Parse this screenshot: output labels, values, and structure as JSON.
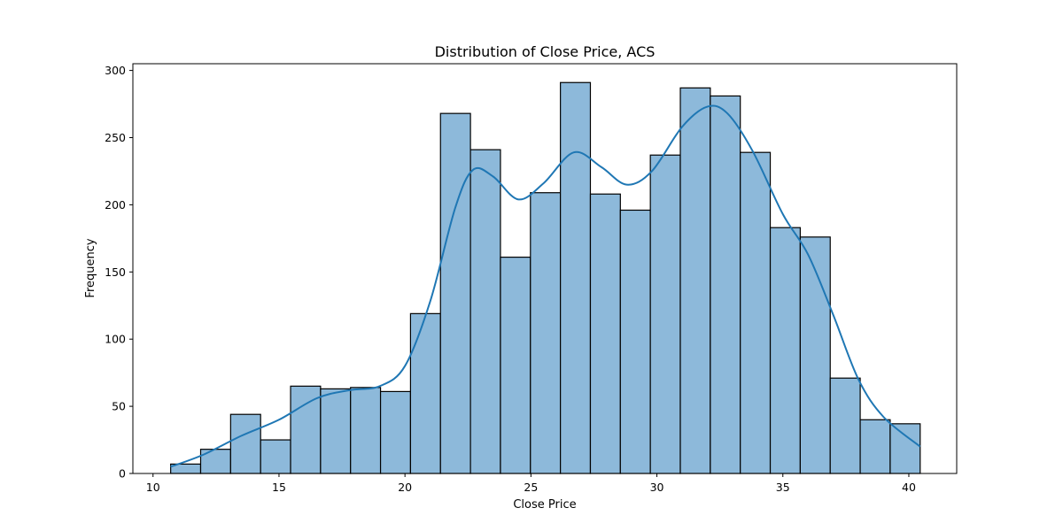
{
  "chart_data": {
    "type": "bar",
    "title": "Distribution of Close Price, ACS",
    "xlabel": "Close Price",
    "ylabel": "Frequency",
    "xlim": [
      9.2,
      41.9
    ],
    "ylim": [
      0,
      305
    ],
    "xticks": [
      10,
      15,
      20,
      25,
      30,
      35,
      40
    ],
    "yticks": [
      0,
      50,
      100,
      150,
      200,
      250,
      300
    ],
    "bin_edges": [
      10.7,
      11.89,
      13.08,
      14.27,
      15.46,
      16.65,
      17.84,
      19.03,
      20.22,
      21.41,
      22.6,
      23.79,
      24.98,
      26.17,
      27.36,
      28.55,
      29.74,
      30.93,
      32.12,
      33.31,
      34.5,
      35.69,
      36.88,
      38.07,
      39.26,
      40.45
    ],
    "values": [
      7,
      18,
      44,
      25,
      65,
      63,
      64,
      61,
      119,
      268,
      241,
      161,
      209,
      291,
      208,
      196,
      237,
      287,
      281,
      239,
      183,
      176,
      71,
      40,
      37
    ],
    "kde": {
      "x": [
        10.7,
        12.0,
        13.5,
        15.0,
        16.5,
        17.8,
        19.0,
        20.0,
        21.0,
        22.0,
        22.7,
        23.5,
        24.5,
        25.5,
        26.7,
        27.8,
        28.8,
        29.8,
        31.0,
        32.0,
        32.8,
        33.8,
        35.0,
        36.0,
        37.0,
        38.0,
        39.0,
        40.45
      ],
      "y": [
        5,
        14,
        28,
        40,
        56,
        62,
        65,
        80,
        128,
        198,
        226,
        221,
        204,
        216,
        239,
        228,
        215,
        225,
        258,
        273,
        268,
        240,
        193,
        163,
        118,
        70,
        42,
        20
      ]
    },
    "colors": {
      "bar": "#8db9da",
      "edge": "#000000",
      "kde": "#1f77b4"
    },
    "grid": false,
    "legend": "none"
  }
}
